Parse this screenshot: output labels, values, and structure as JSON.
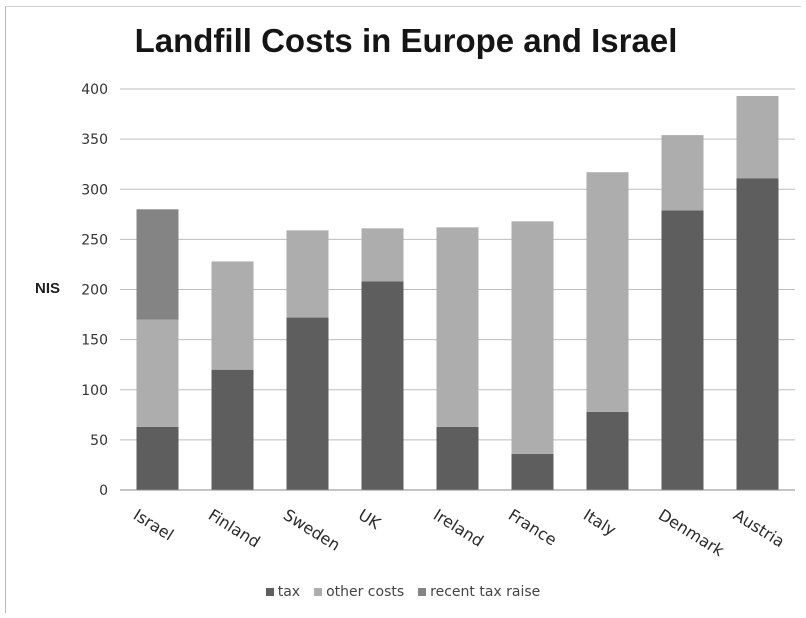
{
  "chart_data": {
    "type": "bar",
    "stacked": true,
    "title": "Landfill Costs in Europe and Israel",
    "xlabel": "",
    "ylabel": "NIS",
    "ylim": [
      0,
      400
    ],
    "yticks": [
      0,
      50,
      100,
      150,
      200,
      250,
      300,
      350,
      400
    ],
    "grid": true,
    "legend_position": "bottom",
    "categories": [
      "Israel",
      "Finland",
      "Sweden",
      "UK",
      "Ireland",
      "France",
      "Italy",
      "Denmark",
      "Austria"
    ],
    "series": [
      {
        "name": "tax",
        "color": "#5e5e5e",
        "values": [
          63,
          120,
          172,
          208,
          63,
          36,
          78,
          279,
          311
        ]
      },
      {
        "name": "other costs",
        "color": "#adadad",
        "values": [
          107,
          108,
          87,
          53,
          199,
          232,
          239,
          75,
          82
        ]
      },
      {
        "name": "recent tax raise",
        "color": "#848484",
        "values": [
          110,
          0,
          0,
          0,
          0,
          0,
          0,
          0,
          0
        ]
      }
    ]
  }
}
